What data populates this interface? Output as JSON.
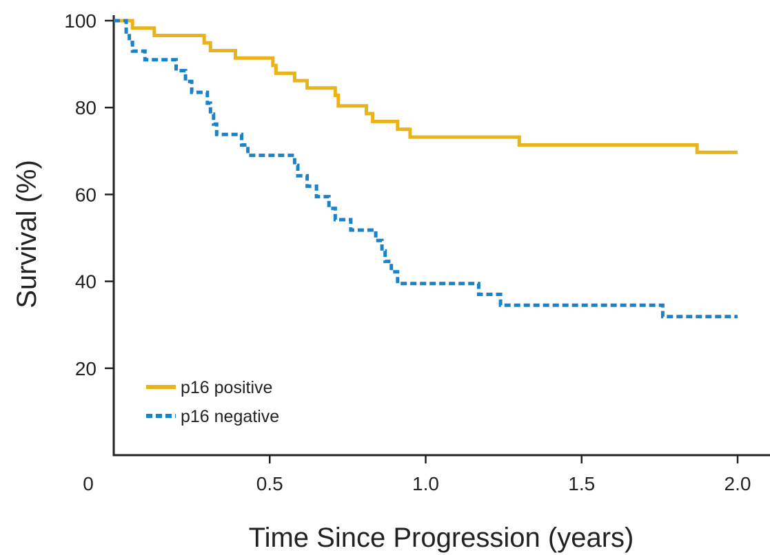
{
  "chart_data": {
    "type": "line",
    "xlabel": "Time Since Progression (years)",
    "ylabel": "Survival (%)",
    "xlim": [
      0,
      2.0
    ],
    "ylim": [
      0,
      100
    ],
    "x_ticks": [
      {
        "value": 0,
        "label": "0"
      },
      {
        "value": 0.5,
        "label": "0.5"
      },
      {
        "value": 1.0,
        "label": "1.0"
      },
      {
        "value": 1.5,
        "label": "1.5"
      },
      {
        "value": 2.0,
        "label": "2.0"
      }
    ],
    "y_ticks": [
      {
        "value": 20,
        "label": "20"
      },
      {
        "value": 40,
        "label": "40"
      },
      {
        "value": 60,
        "label": "60"
      },
      {
        "value": 80,
        "label": "80"
      },
      {
        "value": 100,
        "label": "100"
      }
    ],
    "grid": false,
    "legend_position": "bottom-left",
    "step": true,
    "series": [
      {
        "name": "p16 positive",
        "color": "#e8b419",
        "dash": "solid",
        "points": [
          [
            0,
            100
          ],
          [
            0.06,
            98.3
          ],
          [
            0.13,
            96.6
          ],
          [
            0.29,
            94.9
          ],
          [
            0.31,
            93.1
          ],
          [
            0.39,
            91.4
          ],
          [
            0.51,
            89.7
          ],
          [
            0.52,
            87.9
          ],
          [
            0.58,
            86.2
          ],
          [
            0.62,
            84.5
          ],
          [
            0.71,
            82.8
          ],
          [
            0.72,
            80.4
          ],
          [
            0.81,
            78.6
          ],
          [
            0.83,
            76.8
          ],
          [
            0.91,
            75.0
          ],
          [
            0.95,
            73.2
          ],
          [
            1.3,
            71.4
          ],
          [
            1.87,
            69.7
          ],
          [
            2.0,
            69.7
          ]
        ]
      },
      {
        "name": "p16 negative",
        "color": "#1a82c8",
        "dash": "dashed",
        "points": [
          [
            0,
            100
          ],
          [
            0.04,
            97.4
          ],
          [
            0.05,
            95.0
          ],
          [
            0.06,
            93.0
          ],
          [
            0.1,
            91.0
          ],
          [
            0.2,
            88.5
          ],
          [
            0.23,
            86.0
          ],
          [
            0.25,
            83.5
          ],
          [
            0.3,
            81.0
          ],
          [
            0.31,
            78.5
          ],
          [
            0.32,
            76.2
          ],
          [
            0.33,
            73.8
          ],
          [
            0.41,
            71.4
          ],
          [
            0.43,
            69.0
          ],
          [
            0.58,
            66.7
          ],
          [
            0.59,
            64.3
          ],
          [
            0.62,
            61.9
          ],
          [
            0.65,
            59.5
          ],
          [
            0.69,
            56.8
          ],
          [
            0.71,
            54.2
          ],
          [
            0.76,
            51.8
          ],
          [
            0.84,
            49.4
          ],
          [
            0.86,
            47.0
          ],
          [
            0.87,
            44.6
          ],
          [
            0.89,
            42.2
          ],
          [
            0.91,
            39.5
          ],
          [
            1.17,
            37.0
          ],
          [
            1.24,
            34.5
          ],
          [
            1.76,
            31.9
          ],
          [
            2.0,
            31.9
          ]
        ]
      }
    ]
  }
}
